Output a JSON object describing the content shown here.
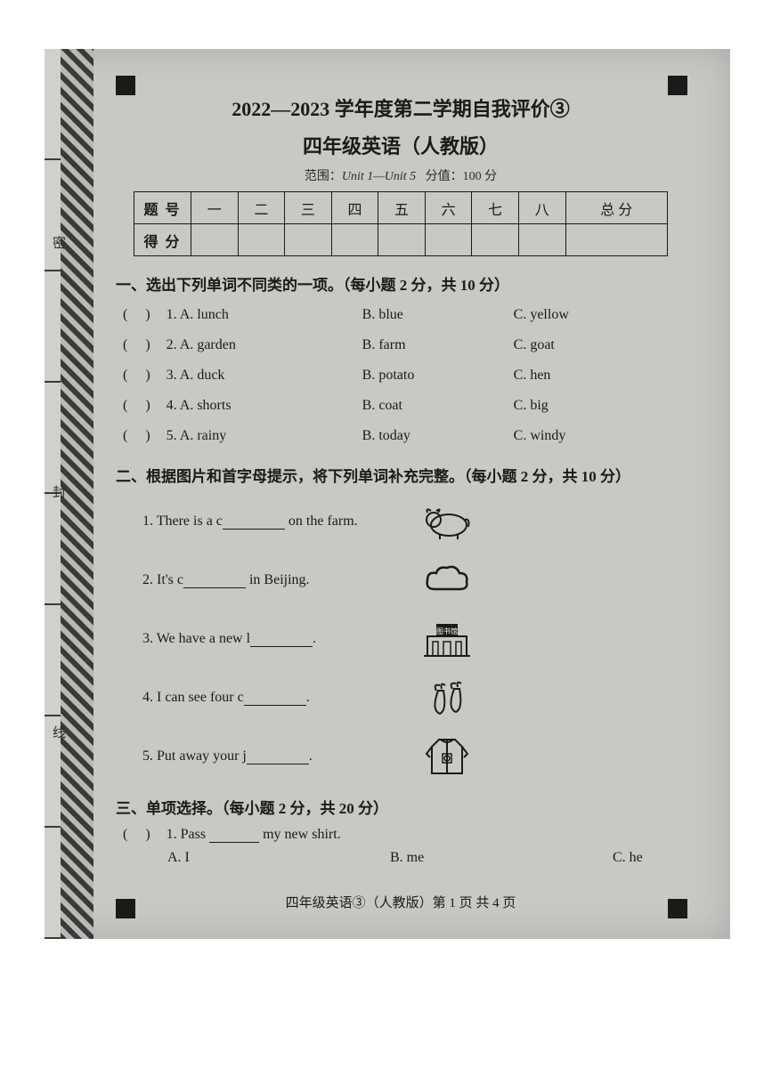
{
  "header": {
    "title_line1": "2022—2023 学年度第二学期自我评价③",
    "title_line2": "四年级英语（人教版）",
    "range_label": "范围：",
    "range_value": "Unit 1—Unit 5",
    "score_label": "分值：",
    "score_value": "100 分"
  },
  "score_table": {
    "row1_header": "题 号",
    "cols": [
      "一",
      "二",
      "三",
      "四",
      "五",
      "六",
      "七",
      "八",
      "总 分"
    ],
    "row2_header": "得 分"
  },
  "binding": {
    "char1": "密",
    "char2": "封",
    "char3": "线"
  },
  "section1": {
    "title": "一、选出下列单词不同类的一项。（每小题 2 分，共 10 分）",
    "items": [
      {
        "num": "1.",
        "a": "A. lunch",
        "b": "B. blue",
        "c": "C. yellow"
      },
      {
        "num": "2.",
        "a": "A. garden",
        "b": "B. farm",
        "c": "C. goat"
      },
      {
        "num": "3.",
        "a": "A. duck",
        "b": "B. potato",
        "c": "C. hen"
      },
      {
        "num": "4.",
        "a": "A. shorts",
        "b": "B. coat",
        "c": "C. big"
      },
      {
        "num": "5.",
        "a": "A. rainy",
        "b": "B. today",
        "c": "C. windy"
      }
    ]
  },
  "section2": {
    "title": "二、根据图片和首字母提示，将下列单词补充完整。（每小题 2 分，共 10 分）",
    "items": [
      {
        "num": "1.",
        "pre": "There is a c",
        "post": " on the farm.",
        "icon": "cow"
      },
      {
        "num": "2.",
        "pre": "It's c",
        "post": " in Beijing.",
        "icon": "cloud"
      },
      {
        "num": "3.",
        "pre": "We have a new l",
        "post": ".",
        "icon": "library"
      },
      {
        "num": "4.",
        "pre": "I can see four c",
        "post": ".",
        "icon": "carrots"
      },
      {
        "num": "5.",
        "pre": "Put away your j",
        "post": ".",
        "icon": "jacket"
      }
    ]
  },
  "section3": {
    "title": "三、单项选择。（每小题 2 分，共 20 分）",
    "items": [
      {
        "num": "1.",
        "stem_pre": "Pass ",
        "stem_post": " my new shirt.",
        "a": "A. I",
        "b": "B. me",
        "c": "C. he"
      }
    ]
  },
  "footer": "四年级英语③（人教版）第 1 页 共 4 页",
  "colors": {
    "page_bg": "#ffffff",
    "scan_bg": "#c8c8c5",
    "text": "#1a1a18",
    "border": "#1a1a18"
  }
}
